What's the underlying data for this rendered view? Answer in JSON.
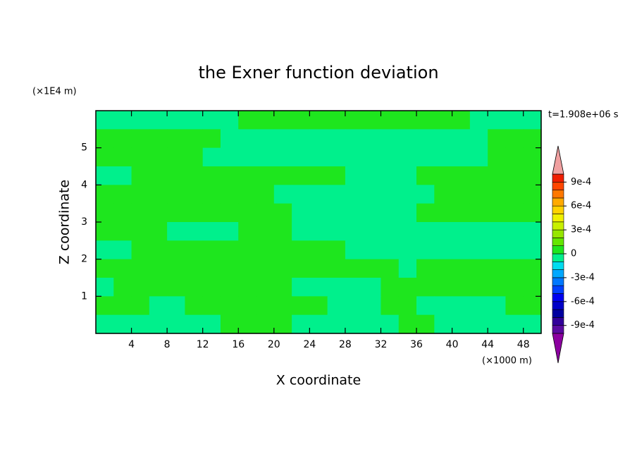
{
  "chart_data": {
    "type": "contour",
    "title": "the Exner function deviation",
    "xlabel": "X coordinate",
    "ylabel": "Z coordinate",
    "xunit": "(×1000 m)",
    "yunit": "(×1E4 m)",
    "annotation": "t=1.908e+06 s",
    "xlim": [
      0,
      50
    ],
    "ylim": [
      0,
      6
    ],
    "xticks": [
      4,
      8,
      12,
      16,
      20,
      24,
      28,
      32,
      36,
      40,
      44,
      48
    ],
    "yticks": [
      1,
      2,
      3,
      4,
      5
    ],
    "z": [
      [
        -5e-05,
        -5e-05,
        -5e-05,
        -5e-05,
        -5e-05,
        -5e-05,
        -5e-05,
        -5e-05,
        5e-05,
        5e-05,
        5e-05,
        5e-05,
        5e-05,
        5e-05,
        5e-05,
        5e-05,
        5e-05,
        5e-05,
        5e-05,
        5e-05,
        5e-05,
        -5e-05,
        -5e-05,
        -5e-05,
        -5e-05
      ],
      [
        5e-05,
        5e-05,
        5e-05,
        5e-05,
        5e-05,
        5e-05,
        5e-05,
        -5e-05,
        -5e-05,
        -5e-05,
        -5e-05,
        -5e-05,
        -5e-05,
        -5e-05,
        -5e-05,
        -5e-05,
        -5e-05,
        -5e-05,
        -5e-05,
        -5e-05,
        -5e-05,
        -5e-05,
        5e-05,
        5e-05,
        5e-05
      ],
      [
        5e-05,
        5e-05,
        5e-05,
        5e-05,
        5e-05,
        5e-05,
        -5e-05,
        -5e-05,
        -5e-05,
        -5e-05,
        -5e-05,
        -5e-05,
        -5e-05,
        -5e-05,
        -5e-05,
        -5e-05,
        -5e-05,
        -5e-05,
        -5e-05,
        -5e-05,
        -5e-05,
        -5e-05,
        5e-05,
        5e-05,
        5e-05
      ],
      [
        -5e-05,
        -5e-05,
        5e-05,
        5e-05,
        5e-05,
        5e-05,
        5e-05,
        5e-05,
        5e-05,
        5e-05,
        5e-05,
        5e-05,
        5e-05,
        5e-05,
        -5e-05,
        -5e-05,
        -5e-05,
        -5e-05,
        5e-05,
        5e-05,
        5e-05,
        5e-05,
        5e-05,
        5e-05,
        5e-05
      ],
      [
        5e-05,
        5e-05,
        5e-05,
        5e-05,
        5e-05,
        5e-05,
        5e-05,
        5e-05,
        5e-05,
        5e-05,
        -5e-05,
        -5e-05,
        -5e-05,
        -5e-05,
        -5e-05,
        -5e-05,
        -5e-05,
        -5e-05,
        -5e-05,
        5e-05,
        5e-05,
        5e-05,
        5e-05,
        5e-05,
        5e-05
      ],
      [
        5e-05,
        5e-05,
        5e-05,
        5e-05,
        5e-05,
        5e-05,
        5e-05,
        5e-05,
        5e-05,
        5e-05,
        5e-05,
        -5e-05,
        -5e-05,
        -5e-05,
        -5e-05,
        -5e-05,
        -5e-05,
        -5e-05,
        5e-05,
        5e-05,
        5e-05,
        5e-05,
        5e-05,
        5e-05,
        5e-05
      ],
      [
        5e-05,
        5e-05,
        5e-05,
        5e-05,
        -5e-05,
        -5e-05,
        -5e-05,
        -5e-05,
        5e-05,
        5e-05,
        5e-05,
        -5e-05,
        -5e-05,
        -5e-05,
        -5e-05,
        -5e-05,
        -5e-05,
        -5e-05,
        -5e-05,
        -5e-05,
        -5e-05,
        -5e-05,
        -5e-05,
        -5e-05,
        -5e-05
      ],
      [
        -5e-05,
        -5e-05,
        5e-05,
        5e-05,
        5e-05,
        5e-05,
        5e-05,
        5e-05,
        5e-05,
        5e-05,
        5e-05,
        5e-05,
        5e-05,
        5e-05,
        -5e-05,
        -5e-05,
        -5e-05,
        -5e-05,
        -5e-05,
        -5e-05,
        -5e-05,
        -5e-05,
        -5e-05,
        -5e-05,
        -5e-05
      ],
      [
        5e-05,
        5e-05,
        5e-05,
        5e-05,
        5e-05,
        5e-05,
        5e-05,
        5e-05,
        5e-05,
        5e-05,
        5e-05,
        5e-05,
        5e-05,
        5e-05,
        5e-05,
        5e-05,
        5e-05,
        -5e-05,
        5e-05,
        5e-05,
        5e-05,
        5e-05,
        5e-05,
        5e-05,
        5e-05
      ],
      [
        -5e-05,
        5e-05,
        5e-05,
        5e-05,
        5e-05,
        5e-05,
        5e-05,
        5e-05,
        5e-05,
        5e-05,
        5e-05,
        -5e-05,
        -5e-05,
        -5e-05,
        -5e-05,
        -5e-05,
        5e-05,
        5e-05,
        5e-05,
        5e-05,
        5e-05,
        5e-05,
        5e-05,
        5e-05,
        5e-05
      ],
      [
        5e-05,
        5e-05,
        5e-05,
        -5e-05,
        -5e-05,
        5e-05,
        5e-05,
        5e-05,
        5e-05,
        5e-05,
        5e-05,
        5e-05,
        5e-05,
        -5e-05,
        -5e-05,
        -5e-05,
        5e-05,
        5e-05,
        -5e-05,
        -5e-05,
        -5e-05,
        -5e-05,
        -5e-05,
        5e-05,
        5e-05
      ],
      [
        -5e-05,
        -5e-05,
        -5e-05,
        -5e-05,
        -5e-05,
        -5e-05,
        -5e-05,
        5e-05,
        5e-05,
        5e-05,
        5e-05,
        -5e-05,
        -5e-05,
        -5e-05,
        -5e-05,
        -5e-05,
        -5e-05,
        5e-05,
        5e-05,
        -5e-05,
        -5e-05,
        -5e-05,
        -5e-05,
        -5e-05,
        -5e-05
      ]
    ],
    "colorbar": {
      "levels": [
        -0.001,
        -0.0009,
        -0.0008,
        -0.0007,
        -0.0006,
        -0.0005,
        -0.0004,
        -0.0003,
        -0.0002,
        -0.0001,
        0,
        0.0001,
        0.0002,
        0.0003,
        0.0004,
        0.0005,
        0.0006,
        0.0007,
        0.0008,
        0.0009,
        0.001
      ],
      "colors": [
        "#5a0aa0",
        "#32009a",
        "#0000a0",
        "#0000c8",
        "#0000f0",
        "#0040ff",
        "#0078ff",
        "#00a8ff",
        "#00dcf0",
        "#00f08c",
        "#1ee61e",
        "#64e600",
        "#96e600",
        "#c8f000",
        "#f0f000",
        "#ffd200",
        "#ffaa00",
        "#ff7800",
        "#ff4600",
        "#f01e00"
      ],
      "under_color": "#8c00a0",
      "over_color": "#f0a0a0",
      "ticks": [
        {
          "value": 0.0009,
          "label": "9e-4"
        },
        {
          "value": 0.0006,
          "label": "6e-4"
        },
        {
          "value": 0.0003,
          "label": "3e-4"
        },
        0,
        {
          "value": -0.0003,
          "label": "-3e-4"
        },
        {
          "value": -0.0006,
          "label": "-6e-4"
        },
        {
          "value": -0.0009,
          "label": "-9e-4"
        }
      ]
    }
  }
}
